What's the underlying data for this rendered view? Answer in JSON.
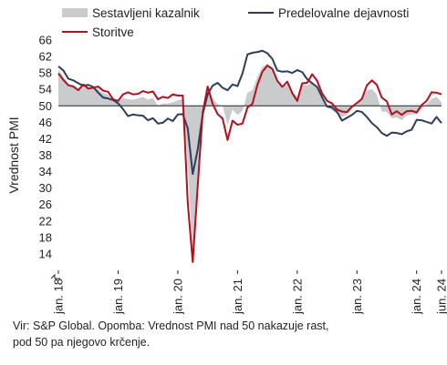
{
  "chart_data": {
    "type": "area",
    "ylabel": "Vrednost PMI",
    "xlabel": "",
    "ylim": [
      10,
      66
    ],
    "y_ticks": [
      14,
      18,
      22,
      26,
      30,
      34,
      38,
      42,
      46,
      50,
      54,
      58,
      62,
      66
    ],
    "x_ticks": [
      "jan. 18",
      "jan. 19",
      "jan. 20",
      "jan. 21",
      "jan. 22",
      "jan. 23",
      "jan. 24",
      "jun. 24"
    ],
    "x_start": "2018-01",
    "x_end": "2024-06",
    "reference_line": 50,
    "legend_position": "top",
    "series": [
      {
        "name": "Sestavljeni kazalnik",
        "style": "area",
        "color": "#c9cbcd",
        "values": [
          58.8,
          57.1,
          55.2,
          55.1,
          54.1,
          54.9,
          54.3,
          54.5,
          54.1,
          53.1,
          52.7,
          51.1,
          51.0,
          51.9,
          51.6,
          51.5,
          51.8,
          52.2,
          51.5,
          51.9,
          50.1,
          50.6,
          50.6,
          50.9,
          51.3,
          51.6,
          36.2,
          13.6,
          31.9,
          48.5,
          54.9,
          51.9,
          50.4,
          50.0,
          45.3,
          49.1,
          47.8,
          48.8,
          53.2,
          53.8,
          57.1,
          59.5,
          60.2,
          59.0,
          56.2,
          54.2,
          55.4,
          53.3,
          52.3,
          55.5,
          54.9,
          55.8,
          54.8,
          52.0,
          49.9,
          48.9,
          48.1,
          47.3,
          47.8,
          49.3,
          50.3,
          52.0,
          53.7,
          54.1,
          52.8,
          48.6,
          48.5,
          47.0,
          47.2,
          46.5,
          47.6,
          47.9,
          47.9,
          49.2,
          50.3,
          51.7,
          52.2,
          50.9
        ]
      },
      {
        "name": "Predelovalne dejavnosti",
        "style": "line",
        "color": "#2e3d5e",
        "values": [
          59.6,
          58.6,
          56.6,
          56.2,
          55.5,
          54.9,
          55.1,
          54.6,
          53.2,
          52.0,
          51.8,
          51.4,
          50.6,
          49.2,
          47.5,
          47.9,
          47.7,
          47.6,
          46.5,
          47.0,
          45.7,
          45.9,
          46.9,
          46.3,
          47.9,
          48.0,
          44.5,
          33.4,
          39.4,
          47.9,
          52.8,
          54.9,
          55.6,
          54.4,
          53.8,
          55.2,
          54.8,
          57.9,
          62.5,
          62.9,
          63.1,
          63.4,
          62.8,
          61.4,
          58.6,
          58.3,
          58.4,
          58.0,
          58.7,
          58.2,
          56.5,
          55.5,
          54.6,
          52.1,
          49.8,
          49.6,
          48.5,
          46.4,
          47.1,
          47.8,
          48.8,
          48.5,
          47.3,
          45.8,
          44.8,
          43.4,
          42.7,
          43.5,
          43.4,
          43.1,
          43.8,
          44.2,
          46.6,
          46.5,
          46.1,
          45.7,
          47.3,
          45.8
        ]
      },
      {
        "name": "Storitve",
        "style": "line",
        "color": "#b3101e",
        "values": [
          57.9,
          56.3,
          55.0,
          54.7,
          53.8,
          55.2,
          54.2,
          54.4,
          54.7,
          53.7,
          53.4,
          51.6,
          51.2,
          52.8,
          53.3,
          52.8,
          52.9,
          53.6,
          53.2,
          53.5,
          51.6,
          52.2,
          51.9,
          52.8,
          52.5,
          52.5,
          26.4,
          12.0,
          30.5,
          48.3,
          54.7,
          50.5,
          48.0,
          46.9,
          41.7,
          46.4,
          45.4,
          45.7,
          49.6,
          50.5,
          55.1,
          58.3,
          59.8,
          59.0,
          56.1,
          54.6,
          55.9,
          53.1,
          51.2,
          55.5,
          55.6,
          57.7,
          56.1,
          53.0,
          51.2,
          50.6,
          49.1,
          48.6,
          48.5,
          49.8,
          50.7,
          51.7,
          55.0,
          56.2,
          55.1,
          52.0,
          51.1,
          47.9,
          48.7,
          47.8,
          48.7,
          48.8,
          48.4,
          50.2,
          51.2,
          53.3,
          53.2,
          52.8
        ]
      }
    ]
  },
  "note": {
    "line1": "Vir: S&P Global. Opomba: Vrednost PMI nad 50 nakazuje rast,",
    "line2": "pod 50 pa njegovo krčenje."
  }
}
